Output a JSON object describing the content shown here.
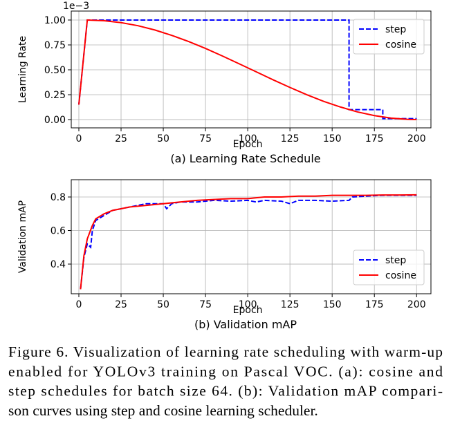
{
  "chart_data": [
    {
      "type": "line",
      "caption": "(a) Learning Rate Schedule",
      "xlabel": "Epoch",
      "ylabel": "Learning Rate",
      "offset_text": "1e−3",
      "xlim": [
        -4.5,
        208.5
      ],
      "ylim": [
        -0.083,
        1.09
      ],
      "xticks": [
        0,
        25,
        50,
        75,
        100,
        125,
        150,
        175,
        200
      ],
      "yticks": [
        {
          "value": 0,
          "label": "0.00"
        },
        {
          "value": 0.25,
          "label": "0.25"
        },
        {
          "value": 0.5,
          "label": "0.50"
        },
        {
          "value": 0.75,
          "label": "0.75"
        },
        {
          "value": 1,
          "label": "1.00"
        }
      ],
      "grid": true,
      "legend": "upper right",
      "series": [
        {
          "name": "step",
          "color": "#0000ff",
          "dash": true,
          "x": [
            0,
            5,
            160,
            160,
            180,
            180,
            200
          ],
          "values": [
            0.15,
            1,
            1,
            0.1,
            0.1,
            0.01,
            0.01
          ]
        },
        {
          "name": "cosine",
          "color": "#ff0000",
          "dash": false,
          "x": [
            0,
            5,
            15,
            25,
            35,
            45,
            55,
            65,
            75,
            85,
            95,
            105,
            115,
            125,
            135,
            145,
            155,
            165,
            175,
            185,
            195,
            200
          ],
          "values": [
            0.15,
            1,
            0.993,
            0.974,
            0.943,
            0.9,
            0.846,
            0.784,
            0.715,
            0.639,
            0.56,
            0.48,
            0.4,
            0.323,
            0.25,
            0.183,
            0.126,
            0.077,
            0.04,
            0.015,
            0.002,
            0
          ]
        }
      ]
    },
    {
      "type": "line",
      "caption": "(b) Validation mAP",
      "xlabel": "Epoch",
      "ylabel": "Validation mAP",
      "xlim": [
        -4.5,
        208.5
      ],
      "ylim": [
        0.223,
        0.903
      ],
      "xticks": [
        0,
        25,
        50,
        75,
        100,
        125,
        150,
        175,
        200
      ],
      "yticks": [
        0.4,
        0.6,
        0.8
      ],
      "grid": true,
      "legend": "lower right",
      "series": [
        {
          "name": "step",
          "color": "#0000ff",
          "dash": true,
          "x": [
            1,
            3,
            5,
            7,
            8,
            10,
            15,
            20,
            25,
            30,
            40,
            50,
            52,
            55,
            60,
            70,
            80,
            90,
            100,
            105,
            110,
            120,
            125,
            130,
            140,
            150,
            160,
            162,
            170,
            180,
            190,
            200
          ],
          "values": [
            0.25,
            0.44,
            0.52,
            0.5,
            0.6,
            0.66,
            0.69,
            0.72,
            0.73,
            0.74,
            0.76,
            0.76,
            0.73,
            0.76,
            0.77,
            0.77,
            0.78,
            0.775,
            0.78,
            0.77,
            0.78,
            0.775,
            0.76,
            0.78,
            0.78,
            0.775,
            0.78,
            0.8,
            0.805,
            0.81,
            0.81,
            0.81
          ]
        },
        {
          "name": "cosine",
          "color": "#ff0000",
          "dash": false,
          "x": [
            1,
            3,
            5,
            8,
            10,
            15,
            20,
            25,
            30,
            40,
            50,
            60,
            70,
            80,
            90,
            100,
            110,
            120,
            130,
            140,
            150,
            160,
            170,
            180,
            190,
            200
          ],
          "values": [
            0.25,
            0.45,
            0.55,
            0.63,
            0.67,
            0.7,
            0.72,
            0.73,
            0.74,
            0.75,
            0.76,
            0.77,
            0.78,
            0.785,
            0.79,
            0.79,
            0.8,
            0.8,
            0.805,
            0.805,
            0.81,
            0.81,
            0.81,
            0.812,
            0.812,
            0.813
          ]
        }
      ]
    }
  ],
  "caption": [
    "Figure 6. Visualization of learning rate scheduling with warm-up",
    "enabled for YOLOv3 training on Pascal VOC. (a): cosine and",
    "step schedules for batch size 64. (b): Validation mAP compari-",
    "son curves using step and cosine learning scheduler."
  ]
}
